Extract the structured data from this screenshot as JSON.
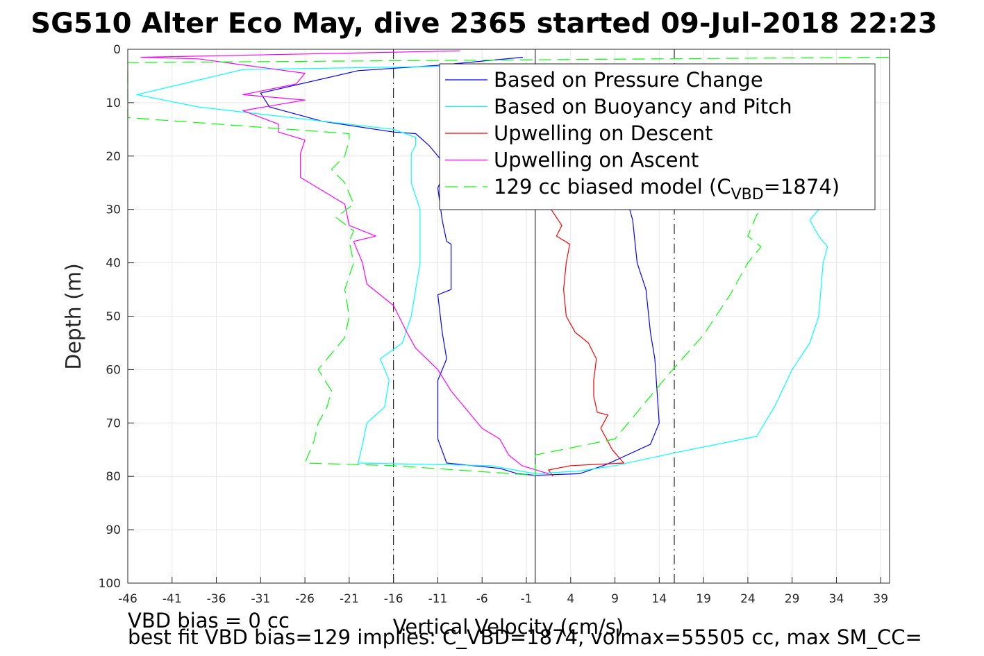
{
  "chart_data": {
    "type": "line",
    "title": "SG510 Alter Eco May, dive 2365 started 09-Jul-2018 22:23",
    "xlabel": "Vertical Velocity (cm/s)",
    "ylabel": "Depth (m)",
    "xlim": [
      -46,
      40
    ],
    "ylim": [
      0,
      100
    ],
    "y_reversed": true,
    "grid": true,
    "legend_position": "top-right",
    "xticks": [
      -46,
      -41,
      -36,
      -31,
      -26,
      -21,
      -16,
      -11,
      -6,
      -1,
      4,
      9,
      14,
      19,
      24,
      29,
      34,
      39
    ],
    "yticks": [
      0,
      10,
      20,
      30,
      40,
      50,
      60,
      70,
      80,
      90,
      100
    ],
    "reference_lines": [
      {
        "x": -16,
        "style": "dashdot",
        "color": "#000000"
      },
      {
        "x": 0,
        "style": "solid",
        "color": "#000000"
      },
      {
        "x": 15.7,
        "style": "dashdot",
        "color": "#000000"
      }
    ],
    "series": [
      {
        "name": "Based on Pressure Change",
        "color": "#0000ff",
        "dash": "solid",
        "points": [
          [
            -1.4,
            1.5
          ],
          [
            -11,
            3
          ],
          [
            -20,
            4
          ],
          [
            -31,
            8.2
          ],
          [
            -30,
            10.8
          ],
          [
            -24,
            13.5
          ],
          [
            -16,
            15.5
          ],
          [
            -13.5,
            15.8
          ],
          [
            -12,
            18
          ],
          [
            -11,
            20
          ],
          [
            -10,
            22
          ],
          [
            -11,
            26
          ],
          [
            -10.5,
            32
          ],
          [
            -10,
            36
          ],
          [
            -9.5,
            36.5
          ],
          [
            -9.5,
            45
          ],
          [
            -11,
            46
          ],
          [
            -10.5,
            53
          ],
          [
            -10,
            58
          ],
          [
            -11,
            62
          ],
          [
            -11,
            70
          ],
          [
            -11,
            73
          ],
          [
            -10,
            77.5
          ],
          [
            -4,
            78.5
          ],
          [
            -2,
            79.5
          ],
          [
            0,
            79.8
          ],
          [
            5,
            79.5
          ],
          [
            8,
            77.8
          ],
          [
            13,
            74
          ],
          [
            14,
            70
          ],
          [
            13.5,
            58
          ],
          [
            13,
            53
          ],
          [
            12.5,
            45
          ],
          [
            11.5,
            40
          ],
          [
            11,
            32
          ],
          [
            10.5,
            29
          ]
        ]
      },
      {
        "name": "Upwelling on Descent",
        "color": "#ff0000",
        "dash": "solid",
        "points": [
          [
            1.8,
            30
          ],
          [
            3,
            33
          ],
          [
            2.4,
            35
          ],
          [
            3.9,
            36.5
          ],
          [
            3.5,
            40
          ],
          [
            3.2,
            45
          ],
          [
            3.5,
            50
          ],
          [
            4.5,
            53
          ],
          [
            6,
            55
          ],
          [
            6.9,
            58
          ],
          [
            6.6,
            62
          ],
          [
            6.6,
            65
          ],
          [
            7,
            68
          ],
          [
            8.2,
            68.5
          ],
          [
            7.4,
            71
          ],
          [
            8.7,
            75
          ],
          [
            10,
            77.5
          ],
          [
            4,
            78
          ],
          [
            1.5,
            78.8
          ],
          [
            2,
            80
          ]
        ]
      },
      {
        "name": "Based on Buoyancy and Pitch",
        "color": "#00ffff",
        "dash": "solid",
        "points": [
          [
            -3.5,
            3
          ],
          [
            -33,
            3.8
          ],
          [
            -45,
            8.5
          ],
          [
            -38,
            10.8
          ],
          [
            -16,
            15
          ],
          [
            -13.5,
            16.5
          ],
          [
            -13.5,
            18
          ],
          [
            -14,
            19.5
          ],
          [
            -14,
            25
          ],
          [
            -13,
            30
          ],
          [
            -13,
            35
          ],
          [
            -13,
            40
          ],
          [
            -13.5,
            45
          ],
          [
            -14,
            50
          ],
          [
            -15,
            55
          ],
          [
            -17.5,
            58
          ],
          [
            -16.5,
            62
          ],
          [
            -17,
            67
          ],
          [
            -19,
            70
          ],
          [
            -19.5,
            74
          ],
          [
            -20,
            77.5
          ],
          [
            -5,
            78
          ],
          [
            0,
            79.5
          ],
          [
            5,
            79
          ],
          [
            9,
            78
          ],
          [
            16,
            75.5
          ],
          [
            25,
            72.5
          ],
          [
            27,
            67
          ],
          [
            29,
            60
          ],
          [
            31,
            55
          ],
          [
            32,
            50
          ],
          [
            32.5,
            40
          ],
          [
            33,
            37
          ],
          [
            32,
            35
          ],
          [
            31,
            32
          ],
          [
            32,
            30
          ]
        ]
      },
      {
        "name": "Upwelling on Ascent",
        "color": "#ff00ff",
        "dash": "solid",
        "points": [
          [
            -8.5,
            0.3
          ],
          [
            -44.5,
            1.5
          ],
          [
            -38,
            1.8
          ],
          [
            -26,
            4.5
          ],
          [
            -27,
            6.5
          ],
          [
            -33,
            8.5
          ],
          [
            -26,
            9.5
          ],
          [
            -33,
            11.5
          ],
          [
            -29,
            14
          ],
          [
            -29,
            15.5
          ],
          [
            -26,
            17
          ],
          [
            -26.5,
            19.5
          ],
          [
            -26.5,
            24
          ],
          [
            -25,
            25.5
          ],
          [
            -21.5,
            29
          ],
          [
            -21,
            33
          ],
          [
            -18,
            35
          ],
          [
            -20.5,
            36
          ],
          [
            -19.5,
            40
          ],
          [
            -19,
            44
          ],
          [
            -16,
            48
          ],
          [
            -14.5,
            53
          ],
          [
            -13.5,
            56
          ],
          [
            -11,
            60
          ],
          [
            -9.5,
            64
          ],
          [
            -8,
            67
          ],
          [
            -6,
            71
          ],
          [
            -4,
            73
          ],
          [
            -3,
            76
          ],
          [
            -1.5,
            78
          ],
          [
            1.5,
            79.5
          ]
        ]
      },
      {
        "name": "129 cc biased model (C",
        "legend_subscript": "VBD",
        "legend_suffix": "=1874)",
        "color": "#00ff00",
        "dash": "dashed",
        "points": [
          [
            39.9,
            1.5
          ],
          [
            -46,
            2.5
          ],
          [
            -46,
            12.8
          ],
          [
            -21,
            15.8
          ],
          [
            -21,
            17
          ],
          [
            -21.5,
            20
          ],
          [
            -23,
            22.5
          ],
          [
            -21.5,
            25
          ],
          [
            -20.5,
            29
          ],
          [
            -22.5,
            31.5
          ],
          [
            -20.5,
            34
          ],
          [
            -21,
            36
          ],
          [
            -20.5,
            40
          ],
          [
            -21.5,
            45
          ],
          [
            -21,
            50
          ],
          [
            -21.5,
            54
          ],
          [
            -23,
            57
          ],
          [
            -24.5,
            60
          ],
          [
            -23,
            64
          ],
          [
            -23.5,
            67
          ],
          [
            -24.5,
            70
          ],
          [
            -25,
            73.5
          ],
          [
            -26,
            77.5
          ],
          [
            -16,
            78
          ],
          [
            0,
            79.8
          ],
          [
            0,
            76
          ],
          [
            9,
            73
          ],
          [
            15,
            61
          ],
          [
            19,
            53.5
          ],
          [
            22,
            46
          ],
          [
            24,
            40
          ],
          [
            25.5,
            37
          ],
          [
            24,
            35
          ],
          [
            25,
            31
          ],
          [
            27,
            28
          ]
        ]
      }
    ],
    "notes": [
      "VBD bias = 0 cc",
      "best fit VBD bias=129 implies: C_VBD=1874, volmax=55505 cc, max SM_CC=",
      "Vertical Velocity (cm/s)"
    ]
  }
}
